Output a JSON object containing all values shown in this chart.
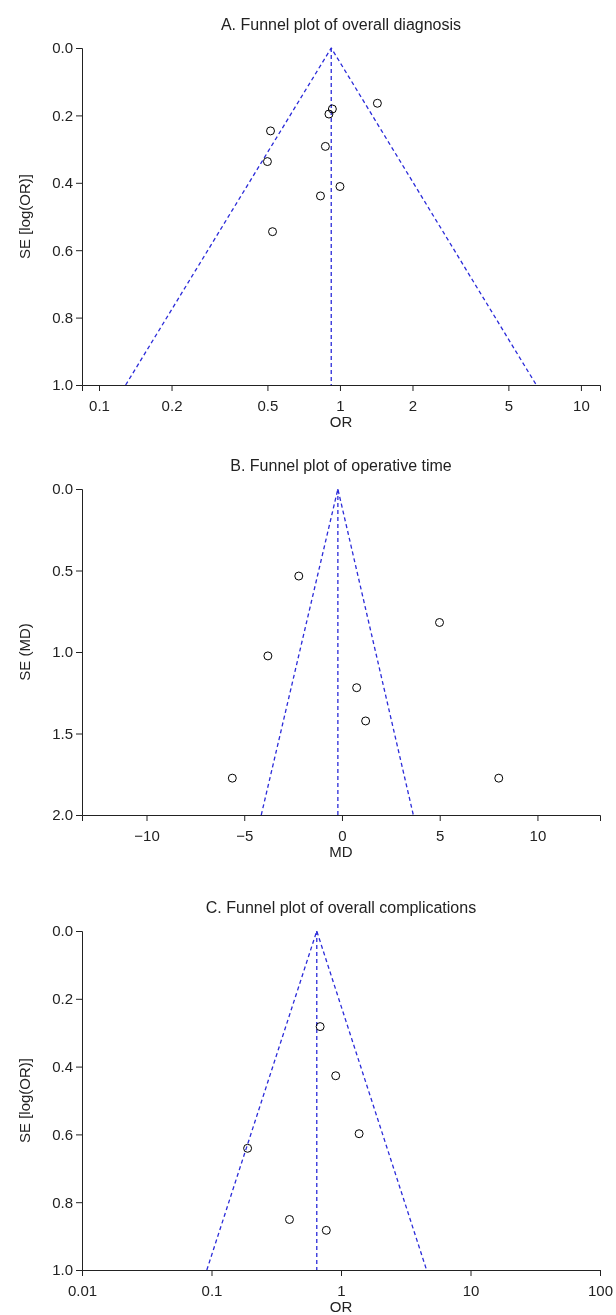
{
  "chart_data": [
    {
      "type": "scatter",
      "title": "A. Funnel plot of overall diagnosis",
      "xlabel": "OR",
      "ylabel": "SE [log(OR)]",
      "log": "x",
      "xlim": [
        0.085,
        12
      ],
      "ylim": [
        1,
        0
      ],
      "xticks": [
        0.1,
        0.2,
        0.5,
        1,
        2,
        5,
        10
      ],
      "yticks": [
        {
          "value": 0,
          "label": "0.0"
        },
        {
          "value": 0.2,
          "label": "0.2"
        },
        {
          "value": 0.4,
          "label": "0.4"
        },
        {
          "value": 0.6,
          "label": "0.6"
        },
        {
          "value": 0.8,
          "label": "0.8"
        },
        {
          "value": 1,
          "label": "1.0"
        }
      ],
      "line_style": "dashed",
      "grid": false,
      "series": [
        {
          "type": "line",
          "marker": "none",
          "color": "#2b2bd9",
          "x": [
            0.129,
            0.92,
            6.53
          ],
          "values": [
            1,
            0,
            1
          ]
        },
        {
          "marker": "circle",
          "color": "#000000",
          "x": [
            1.43,
            0.93,
            0.9,
            0.515,
            0.87,
            0.5,
            1.0,
            0.83,
            0.525
          ],
          "values": [
            0.164,
            0.181,
            0.196,
            0.246,
            0.292,
            0.337,
            0.411,
            0.439,
            0.545
          ]
        }
      ],
      "ref_lines": [
        {
          "axis": "x",
          "value": 0.92,
          "color": "#2b2bd9",
          "line_style": "dashed"
        }
      ]
    },
    {
      "type": "scatter",
      "title": "B. Funnel plot of operative time",
      "xlabel": "MD",
      "ylabel": "SE (MD)",
      "xlim": [
        -13.3,
        13.2
      ],
      "ylim": [
        2,
        0
      ],
      "xticks": [
        {
          "value": -10,
          "label": "−10"
        },
        {
          "value": -5,
          "label": "−5"
        },
        0,
        5,
        10
      ],
      "yticks": [
        {
          "value": 0,
          "label": "0.0"
        },
        {
          "value": 0.5,
          "label": "0.5"
        },
        {
          "value": 1,
          "label": "1.0"
        },
        {
          "value": 1.5,
          "label": "1.5"
        },
        {
          "value": 2,
          "label": "2.0"
        }
      ],
      "line_style": "dashed",
      "grid": false,
      "series": [
        {
          "type": "line",
          "marker": "none",
          "color": "#2b2bd9",
          "x": [
            -4.13,
            -0.21,
            3.65
          ],
          "values": [
            2,
            0,
            2
          ]
        },
        {
          "marker": "circle",
          "color": "#000000",
          "x": [
            -2.21,
            4.99,
            -3.79,
            0.75,
            1.21,
            -5.61,
            8.02
          ],
          "values": [
            0.534,
            0.819,
            1.024,
            1.219,
            1.423,
            1.774,
            1.774
          ]
        }
      ],
      "ref_lines": [
        {
          "axis": "x",
          "value": -0.21,
          "color": "#2b2bd9",
          "line_style": "dashed"
        }
      ]
    },
    {
      "type": "scatter",
      "title": "C. Funnel plot of overall complications",
      "xlabel": "OR",
      "ylabel": "SE [log(OR)]",
      "log": "x",
      "xlim": [
        0.01,
        100
      ],
      "ylim": [
        1,
        0
      ],
      "xticks": [
        0.01,
        0.1,
        1,
        10,
        100
      ],
      "yticks": [
        {
          "value": 0,
          "label": "0.0"
        },
        {
          "value": 0.2,
          "label": "0.2"
        },
        {
          "value": 0.4,
          "label": "0.4"
        },
        {
          "value": 0.6,
          "label": "0.6"
        },
        {
          "value": 0.8,
          "label": "0.8"
        },
        {
          "value": 1,
          "label": "1.0"
        }
      ],
      "line_style": "dashed",
      "grid": false,
      "series": [
        {
          "type": "line",
          "marker": "none",
          "color": "#2b2bd9",
          "x": [
            0.092,
            0.65,
            4.58
          ],
          "values": [
            1,
            0,
            1
          ]
        },
        {
          "marker": "circle",
          "color": "#000000",
          "x": [
            0.69,
            0.91,
            1.38,
            0.19,
            0.4,
            0.77
          ],
          "values": [
            0.282,
            0.427,
            0.598,
            0.641,
            0.851,
            0.883
          ]
        }
      ],
      "ref_lines": [
        {
          "axis": "x",
          "value": 0.65,
          "color": "#2b2bd9",
          "line_style": "dashed"
        }
      ]
    }
  ]
}
